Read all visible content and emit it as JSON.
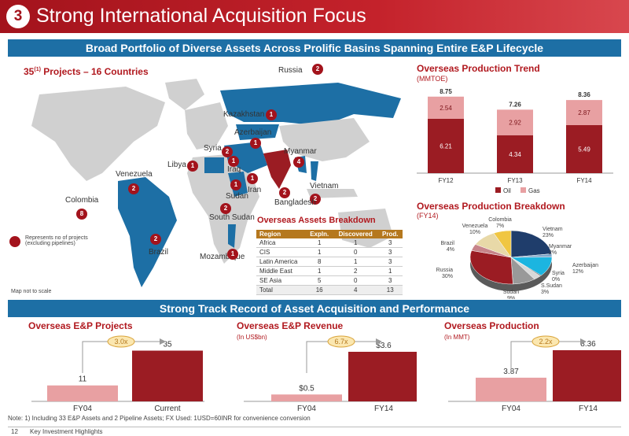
{
  "header": {
    "number": "3",
    "title": "Strong International Acquisition Focus"
  },
  "banner_top": "Broad Portfolio of Diverse Assets Across Prolific Basins Spanning Entire E&P Lifecycle",
  "banner_mid": "Strong Track Record of Asset Acquisition and Performance",
  "map": {
    "title_prefix": "35",
    "title_sup": "(1)",
    "title_suffix": " Projects – 16 Countries",
    "legend": "Represents no of projects (excluding pipelines)",
    "scale_note": "Map not to scale",
    "labels": [
      {
        "name": "Russia",
        "count": "2"
      },
      {
        "name": "Kazakhstan",
        "count": "1"
      },
      {
        "name": "Azerbaijan",
        "count": "1"
      },
      {
        "name": "Syria",
        "count": "2"
      },
      {
        "name": "Libya",
        "count": "1"
      },
      {
        "name": "Iraq",
        "count": "1"
      },
      {
        "name": "Myanmar",
        "count": "4"
      },
      {
        "name": "Iran",
        "count": "1"
      },
      {
        "name": "Sudan",
        "count": "1"
      },
      {
        "name": "Vietnam",
        "count": "2"
      },
      {
        "name": "Bangladesh",
        "count": "2"
      },
      {
        "name": "Venezuela",
        "count": "2"
      },
      {
        "name": "Colombia",
        "count": "8"
      },
      {
        "name": "South Sudan",
        "count": "2"
      },
      {
        "name": "Brazil",
        "count": "2"
      },
      {
        "name": "Mozambique",
        "count": "1"
      }
    ]
  },
  "breakdown": {
    "title": "Overseas Assets Breakdown",
    "columns": [
      "Region",
      "Expln.",
      "Discovered",
      "Prod."
    ],
    "rows": [
      [
        "Africa",
        "1",
        "1",
        "3"
      ],
      [
        "CIS",
        "1",
        "0",
        "3"
      ],
      [
        "Latin America",
        "8",
        "1",
        "3"
      ],
      [
        "Middle East",
        "1",
        "2",
        "1"
      ],
      [
        "SE Asia",
        "5",
        "0",
        "3"
      ]
    ],
    "total": [
      "Total",
      "16",
      "4",
      "13"
    ]
  },
  "production_trend": {
    "title": "Overseas Production Trend",
    "unit": "(MMTOE)",
    "legend": [
      "Oil",
      "Gas"
    ],
    "colors": {
      "oil": "#9b1c23",
      "gas": "#e8a0a2"
    }
  },
  "production_breakdown": {
    "title": "Overseas Production Breakdown",
    "year": "(FY14)",
    "slices": [
      {
        "label": "Vietnam",
        "pct": "23%",
        "value": 23,
        "color": "#1f3d6b"
      },
      {
        "label": "Myanmar",
        "pct": "2%",
        "value": 2,
        "color": "#7fa6c9"
      },
      {
        "label": "Azerbaijan",
        "pct": "12%",
        "value": 12,
        "color": "#1cb5e0"
      },
      {
        "label": "Syria",
        "pct": "0%",
        "value": 0.5,
        "color": "#555555"
      },
      {
        "label": "S.Sudan",
        "pct": "3%",
        "value": 3,
        "color": "#d8d8d8"
      },
      {
        "label": "Sudan",
        "pct": "9%",
        "value": 9,
        "color": "#999999"
      },
      {
        "label": "Russia",
        "pct": "30%",
        "value": 30,
        "color": "#9b1c23"
      },
      {
        "label": "Brazil",
        "pct": "4%",
        "value": 4,
        "color": "#c7848a"
      },
      {
        "label": "Venezuela",
        "pct": "10%",
        "value": 10,
        "color": "#e8d9a8"
      },
      {
        "label": "Colombia",
        "pct": "7%",
        "value": 7,
        "color": "#f0c642"
      }
    ]
  },
  "bottom": {
    "projects": {
      "title": "Overseas E&P Projects",
      "unit": "",
      "multiple": "3.0x",
      "bars": [
        {
          "label": "FY04",
          "value": "11"
        },
        {
          "label": "Current",
          "value": "35"
        }
      ]
    },
    "revenue": {
      "title": "Overseas E&P Revenue",
      "unit": "(In US$bn)",
      "multiple": "6.7x",
      "bars": [
        {
          "label": "FY04",
          "value": "$0.5"
        },
        {
          "label": "FY14",
          "value": "$3.6"
        }
      ]
    },
    "production": {
      "title": "Overseas Production",
      "unit": "(In MMT)",
      "multiple": "2.2x",
      "bars": [
        {
          "label": "FY04",
          "value": "3.87"
        },
        {
          "label": "FY14",
          "value": "8.36"
        }
      ]
    }
  },
  "footer": {
    "note": "Note: 1) Including 33 E&P Assets and 2 Pipeline Assets; FX Used: 1USD=60INR for convenience conversion",
    "page": "12",
    "section": "Key Investment Highlights"
  },
  "chart_data": [
    {
      "type": "bar",
      "title": "Overseas Production Trend",
      "ylabel": "(MMTOE)",
      "categories": [
        "FY12",
        "FY13",
        "FY14"
      ],
      "series": [
        {
          "name": "Oil",
          "values": [
            6.21,
            4.34,
            5.49
          ]
        },
        {
          "name": "Gas",
          "values": [
            2.54,
            2.92,
            2.87
          ]
        }
      ],
      "totals": [
        8.75,
        7.26,
        8.36
      ],
      "stacked": true
    },
    {
      "type": "pie",
      "title": "Overseas Production Breakdown",
      "categories": [
        "Vietnam",
        "Myanmar",
        "Azerbaijan",
        "Syria",
        "S.Sudan",
        "Sudan",
        "Russia",
        "Brazil",
        "Venezuela",
        "Colombia"
      ],
      "values": [
        23,
        2,
        12,
        0,
        3,
        9,
        30,
        4,
        10,
        7
      ]
    },
    {
      "type": "bar",
      "title": "Overseas E&P Projects",
      "categories": [
        "FY04",
        "Current"
      ],
      "values": [
        11,
        35
      ]
    },
    {
      "type": "bar",
      "title": "Overseas E&P Revenue",
      "ylabel": "(In US$bn)",
      "categories": [
        "FY04",
        "FY14"
      ],
      "values": [
        0.5,
        3.6
      ]
    },
    {
      "type": "bar",
      "title": "Overseas Production",
      "ylabel": "(In MMT)",
      "categories": [
        "FY04",
        "FY14"
      ],
      "values": [
        3.87,
        8.36
      ]
    }
  ]
}
